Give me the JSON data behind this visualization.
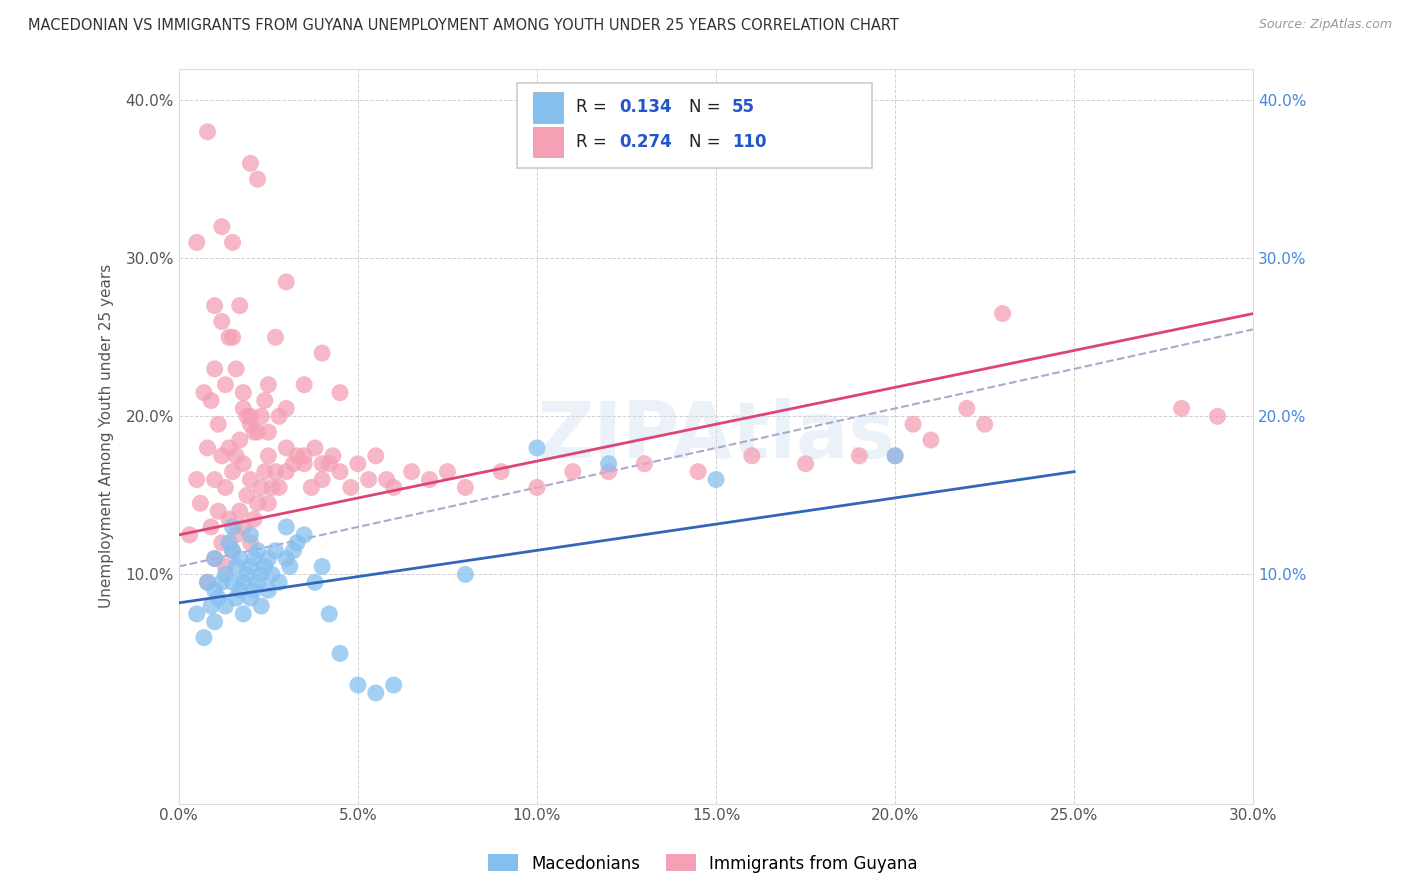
{
  "title": "MACEDONIAN VS IMMIGRANTS FROM GUYANA UNEMPLOYMENT AMONG YOUTH UNDER 25 YEARS CORRELATION CHART",
  "source": "Source: ZipAtlas.com",
  "ylabel": "Unemployment Among Youth under 25 years",
  "xlim": [
    0.0,
    0.3
  ],
  "ylim": [
    -0.045,
    0.42
  ],
  "xtick_vals": [
    0.0,
    0.05,
    0.1,
    0.15,
    0.2,
    0.25,
    0.3
  ],
  "ytick_vals": [
    0.1,
    0.2,
    0.3,
    0.4
  ],
  "ytick_labels_left": [
    "10.0%",
    "20.0%",
    "30.0%",
    "40.0%"
  ],
  "ytick_labels_right": [
    "10.0%",
    "20.0%",
    "30.0%",
    "40.0%"
  ],
  "xtick_labels": [
    "0.0%",
    "5.0%",
    "10.0%",
    "15.0%",
    "20.0%",
    "25.0%",
    "30.0%"
  ],
  "blue_R": "0.134",
  "blue_N": "55",
  "pink_R": "0.274",
  "pink_N": "110",
  "blue_color": "#85BFEE",
  "pink_color": "#F4A0B5",
  "blue_line_color": "#3366BB",
  "pink_line_color": "#DD4477",
  "gray_dash_color": "#AAAACC",
  "legend_label_blue": "Macedonians",
  "legend_label_pink": "Immigrants from Guyana",
  "watermark": "ZIPAtlas",
  "blue_line_x0": 0.0,
  "blue_line_y0": 0.082,
  "blue_line_x1": 0.25,
  "blue_line_y1": 0.165,
  "pink_line_x0": 0.0,
  "pink_line_y0": 0.125,
  "pink_line_x1": 0.3,
  "pink_line_y1": 0.265,
  "gray_line_x0": 0.0,
  "gray_line_y0": 0.105,
  "gray_line_x1": 0.3,
  "gray_line_y1": 0.255,
  "blue_scatter_x": [
    0.005,
    0.007,
    0.008,
    0.009,
    0.01,
    0.01,
    0.01,
    0.011,
    0.012,
    0.013,
    0.013,
    0.014,
    0.015,
    0.015,
    0.015,
    0.016,
    0.016,
    0.017,
    0.017,
    0.018,
    0.018,
    0.019,
    0.02,
    0.02,
    0.02,
    0.021,
    0.021,
    0.022,
    0.022,
    0.023,
    0.023,
    0.024,
    0.025,
    0.025,
    0.026,
    0.027,
    0.028,
    0.03,
    0.03,
    0.031,
    0.032,
    0.033,
    0.035,
    0.038,
    0.04,
    0.042,
    0.045,
    0.05,
    0.055,
    0.06,
    0.08,
    0.1,
    0.12,
    0.15,
    0.2
  ],
  "blue_scatter_y": [
    0.075,
    0.06,
    0.095,
    0.08,
    0.07,
    0.09,
    0.11,
    0.085,
    0.095,
    0.08,
    0.1,
    0.12,
    0.095,
    0.115,
    0.13,
    0.085,
    0.105,
    0.09,
    0.11,
    0.075,
    0.095,
    0.1,
    0.085,
    0.105,
    0.125,
    0.09,
    0.11,
    0.095,
    0.115,
    0.08,
    0.1,
    0.105,
    0.09,
    0.11,
    0.1,
    0.115,
    0.095,
    0.11,
    0.13,
    0.105,
    0.115,
    0.12,
    0.125,
    0.095,
    0.105,
    0.075,
    0.05,
    0.03,
    0.025,
    0.03,
    0.1,
    0.18,
    0.17,
    0.16,
    0.175
  ],
  "pink_scatter_x": [
    0.003,
    0.005,
    0.006,
    0.007,
    0.008,
    0.008,
    0.009,
    0.009,
    0.01,
    0.01,
    0.01,
    0.011,
    0.011,
    0.012,
    0.012,
    0.012,
    0.013,
    0.013,
    0.013,
    0.014,
    0.014,
    0.014,
    0.015,
    0.015,
    0.015,
    0.016,
    0.016,
    0.016,
    0.017,
    0.017,
    0.017,
    0.018,
    0.018,
    0.018,
    0.019,
    0.019,
    0.02,
    0.02,
    0.02,
    0.02,
    0.021,
    0.021,
    0.022,
    0.022,
    0.022,
    0.023,
    0.023,
    0.024,
    0.024,
    0.025,
    0.025,
    0.025,
    0.026,
    0.027,
    0.027,
    0.028,
    0.028,
    0.03,
    0.03,
    0.03,
    0.032,
    0.033,
    0.035,
    0.035,
    0.037,
    0.038,
    0.04,
    0.04,
    0.042,
    0.043,
    0.045,
    0.045,
    0.048,
    0.05,
    0.053,
    0.055,
    0.058,
    0.06,
    0.065,
    0.07,
    0.075,
    0.08,
    0.09,
    0.1,
    0.11,
    0.12,
    0.13,
    0.145,
    0.16,
    0.175,
    0.19,
    0.2,
    0.205,
    0.21,
    0.22,
    0.225,
    0.23,
    0.28,
    0.29,
    0.005,
    0.008,
    0.01,
    0.012,
    0.015,
    0.018,
    0.02,
    0.025,
    0.03,
    0.035,
    0.04
  ],
  "pink_scatter_y": [
    0.125,
    0.16,
    0.145,
    0.215,
    0.095,
    0.18,
    0.13,
    0.21,
    0.11,
    0.16,
    0.23,
    0.14,
    0.195,
    0.12,
    0.175,
    0.26,
    0.105,
    0.155,
    0.22,
    0.135,
    0.18,
    0.25,
    0.115,
    0.165,
    0.31,
    0.125,
    0.175,
    0.23,
    0.14,
    0.185,
    0.27,
    0.13,
    0.17,
    0.215,
    0.15,
    0.2,
    0.12,
    0.16,
    0.2,
    0.36,
    0.135,
    0.19,
    0.145,
    0.19,
    0.35,
    0.155,
    0.2,
    0.165,
    0.21,
    0.145,
    0.175,
    0.22,
    0.155,
    0.165,
    0.25,
    0.155,
    0.2,
    0.165,
    0.205,
    0.285,
    0.17,
    0.175,
    0.17,
    0.22,
    0.155,
    0.18,
    0.16,
    0.24,
    0.17,
    0.175,
    0.165,
    0.215,
    0.155,
    0.17,
    0.16,
    0.175,
    0.16,
    0.155,
    0.165,
    0.16,
    0.165,
    0.155,
    0.165,
    0.155,
    0.165,
    0.165,
    0.17,
    0.165,
    0.175,
    0.17,
    0.175,
    0.175,
    0.195,
    0.185,
    0.205,
    0.195,
    0.265,
    0.205,
    0.2,
    0.31,
    0.38,
    0.27,
    0.32,
    0.25,
    0.205,
    0.195,
    0.19,
    0.18,
    0.175,
    0.17
  ]
}
